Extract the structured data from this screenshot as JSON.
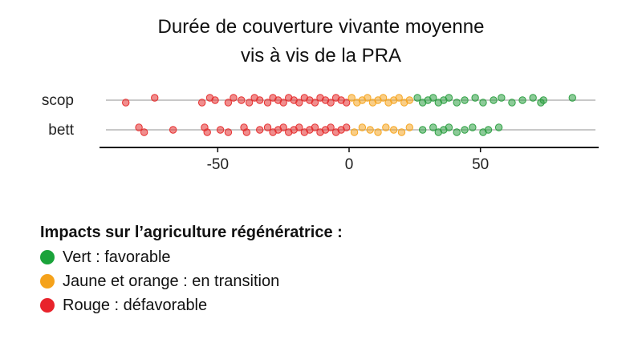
{
  "chart_data": {
    "type": "scatter",
    "title": [
      "Durée de couverture vivante moyenne",
      "vis à vis de la PRA"
    ],
    "xlabel": "",
    "ylabel": "",
    "xlim": [
      -95,
      95
    ],
    "xticks": [
      -50,
      0,
      50
    ],
    "categories": [
      "scop",
      "bett"
    ],
    "grid": "horizontal",
    "series": [
      {
        "category": "scop",
        "color_bands": [
          {
            "from": -95,
            "to": 0,
            "color": "#e53030"
          },
          {
            "from": 0,
            "to": 25,
            "color": "#f5a623"
          },
          {
            "from": 25,
            "to": 95,
            "color": "#2ea043"
          }
        ],
        "points": [
          {
            "x": -85,
            "dy": 1
          },
          {
            "x": -74,
            "dy": -1
          },
          {
            "x": -56,
            "dy": 1
          },
          {
            "x": -53,
            "dy": -1
          },
          {
            "x": -51,
            "dy": 0
          },
          {
            "x": -46,
            "dy": 1
          },
          {
            "x": -44,
            "dy": -1
          },
          {
            "x": -41,
            "dy": 0
          },
          {
            "x": -38,
            "dy": 1
          },
          {
            "x": -36,
            "dy": -1
          },
          {
            "x": -34,
            "dy": 0
          },
          {
            "x": -31,
            "dy": 1
          },
          {
            "x": -29,
            "dy": -1
          },
          {
            "x": -27,
            "dy": 0
          },
          {
            "x": -25,
            "dy": 1
          },
          {
            "x": -23,
            "dy": -1
          },
          {
            "x": -21,
            "dy": 0
          },
          {
            "x": -19,
            "dy": 1
          },
          {
            "x": -17,
            "dy": -1
          },
          {
            "x": -15,
            "dy": 0
          },
          {
            "x": -13,
            "dy": 1
          },
          {
            "x": -11,
            "dy": -1
          },
          {
            "x": -9,
            "dy": 0
          },
          {
            "x": -7,
            "dy": 1
          },
          {
            "x": -5,
            "dy": -1
          },
          {
            "x": -3,
            "dy": 0
          },
          {
            "x": -1,
            "dy": 1
          },
          {
            "x": 1,
            "dy": -1
          },
          {
            "x": 3,
            "dy": 1
          },
          {
            "x": 5,
            "dy": 0
          },
          {
            "x": 7,
            "dy": -1
          },
          {
            "x": 9,
            "dy": 1
          },
          {
            "x": 11,
            "dy": 0
          },
          {
            "x": 13,
            "dy": -1
          },
          {
            "x": 15,
            "dy": 1
          },
          {
            "x": 17,
            "dy": 0
          },
          {
            "x": 19,
            "dy": -1
          },
          {
            "x": 21,
            "dy": 1
          },
          {
            "x": 23,
            "dy": 0
          },
          {
            "x": 26,
            "dy": -1
          },
          {
            "x": 28,
            "dy": 1
          },
          {
            "x": 30,
            "dy": 0
          },
          {
            "x": 32,
            "dy": -1
          },
          {
            "x": 34,
            "dy": 1
          },
          {
            "x": 36,
            "dy": 0
          },
          {
            "x": 38,
            "dy": -1
          },
          {
            "x": 41,
            "dy": 1
          },
          {
            "x": 44,
            "dy": 0
          },
          {
            "x": 48,
            "dy": -1
          },
          {
            "x": 51,
            "dy": 1
          },
          {
            "x": 55,
            "dy": 0
          },
          {
            "x": 58,
            "dy": -1
          },
          {
            "x": 62,
            "dy": 1
          },
          {
            "x": 66,
            "dy": 0
          },
          {
            "x": 70,
            "dy": -1
          },
          {
            "x": 73,
            "dy": 1
          },
          {
            "x": 74,
            "dy": 0
          },
          {
            "x": 85,
            "dy": -1
          }
        ]
      },
      {
        "category": "bett",
        "color_bands": [
          {
            "from": -95,
            "to": 0,
            "color": "#e53030"
          },
          {
            "from": 0,
            "to": 25,
            "color": "#f5a623"
          },
          {
            "from": 25,
            "to": 95,
            "color": "#2ea043"
          }
        ],
        "points": [
          {
            "x": -80,
            "dy": -1
          },
          {
            "x": -78,
            "dy": 1
          },
          {
            "x": -67,
            "dy": 0
          },
          {
            "x": -55,
            "dy": -1
          },
          {
            "x": -54,
            "dy": 1
          },
          {
            "x": -49,
            "dy": 0
          },
          {
            "x": -46,
            "dy": 1
          },
          {
            "x": -40,
            "dy": -1
          },
          {
            "x": -39,
            "dy": 1
          },
          {
            "x": -34,
            "dy": 0
          },
          {
            "x": -31,
            "dy": -1
          },
          {
            "x": -29,
            "dy": 1
          },
          {
            "x": -27,
            "dy": 0
          },
          {
            "x": -25,
            "dy": -1
          },
          {
            "x": -23,
            "dy": 1
          },
          {
            "x": -21,
            "dy": 0
          },
          {
            "x": -19,
            "dy": -1
          },
          {
            "x": -17,
            "dy": 1
          },
          {
            "x": -15,
            "dy": 0
          },
          {
            "x": -13,
            "dy": -1
          },
          {
            "x": -11,
            "dy": 1
          },
          {
            "x": -9,
            "dy": 0
          },
          {
            "x": -7,
            "dy": -1
          },
          {
            "x": -5,
            "dy": 1
          },
          {
            "x": -3,
            "dy": 0
          },
          {
            "x": -1,
            "dy": -1
          },
          {
            "x": 2,
            "dy": 1
          },
          {
            "x": 5,
            "dy": -1
          },
          {
            "x": 8,
            "dy": 0
          },
          {
            "x": 11,
            "dy": 1
          },
          {
            "x": 14,
            "dy": -1
          },
          {
            "x": 17,
            "dy": 0
          },
          {
            "x": 20,
            "dy": 1
          },
          {
            "x": 23,
            "dy": -1
          },
          {
            "x": 28,
            "dy": 0
          },
          {
            "x": 32,
            "dy": -1
          },
          {
            "x": 34,
            "dy": 1
          },
          {
            "x": 36,
            "dy": 0
          },
          {
            "x": 38,
            "dy": -1
          },
          {
            "x": 41,
            "dy": 1
          },
          {
            "x": 44,
            "dy": 0
          },
          {
            "x": 47,
            "dy": -1
          },
          {
            "x": 51,
            "dy": 1
          },
          {
            "x": 53,
            "dy": 0
          },
          {
            "x": 57,
            "dy": -1
          }
        ]
      }
    ]
  },
  "legend": {
    "title": "Impacts sur l’agriculture régénératrice :",
    "items": [
      {
        "label": "Vert : favorable",
        "color": "#1aa33a",
        "icon": "green-dot-icon"
      },
      {
        "label": "Jaune et orange : en transition",
        "color": "#f5a21b",
        "icon": "orange-dot-icon"
      },
      {
        "label": "Rouge : défavorable",
        "color": "#e8232b",
        "icon": "red-dot-icon"
      }
    ]
  }
}
